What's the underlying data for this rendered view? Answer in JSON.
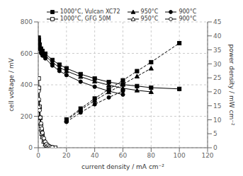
{
  "chart_data": {
    "type": "line",
    "xlabel": "current density / mA cm⁻²",
    "ylabel": "cell voltage / mV",
    "y2label": "power density / mW cm⁻²",
    "xlim": [
      0,
      120
    ],
    "ylim": [
      0,
      800
    ],
    "y2lim": [
      0,
      45
    ],
    "xticks": [
      0,
      20,
      40,
      60,
      80,
      100,
      120
    ],
    "yticks": [
      0,
      200,
      400,
      600,
      800
    ],
    "y2ticks": [
      0,
      5,
      10,
      15,
      20,
      25,
      30,
      35,
      40,
      45
    ],
    "grid": true,
    "legend": "top",
    "series": [
      {
        "name": "1000°C, Vulcan XC72",
        "axis": "y",
        "color": "black",
        "marker": "square",
        "line_style": "solid",
        "x": [
          0.3,
          0.5,
          1,
          2,
          3,
          5,
          10,
          15,
          20,
          30,
          40,
          50,
          60,
          70,
          80,
          100
        ],
        "values": [
          700,
          685,
          655,
          630,
          615,
          598,
          558,
          528,
          505,
          468,
          440,
          418,
          402,
          392,
          382,
          374
        ]
      },
      {
        "name": "950°C",
        "axis": "y",
        "color": "black",
        "marker": "triangle",
        "line_style": "solid",
        "x": [
          0.3,
          0.5,
          1,
          2,
          3,
          5,
          10,
          15,
          20,
          30,
          40,
          50,
          60,
          70,
          80
        ],
        "values": [
          690,
          675,
          642,
          618,
          602,
          585,
          543,
          510,
          488,
          452,
          422,
          398,
          378,
          365,
          355
        ]
      },
      {
        "name": "900°C",
        "axis": "y",
        "color": "black",
        "marker": "circle",
        "line_style": "solid",
        "x": [
          0.3,
          0.5,
          1,
          2,
          3,
          5,
          10,
          15,
          20,
          30,
          40,
          50,
          60
        ],
        "values": [
          672,
          660,
          628,
          602,
          586,
          568,
          523,
          488,
          462,
          420,
          388,
          360,
          338
        ]
      },
      {
        "name": "1000°C, GFG 50M",
        "axis": "y",
        "color": "black",
        "marker": "square-open",
        "line_style": "solid",
        "x": [
          0.3,
          0.5,
          1,
          1.5,
          2,
          2.5,
          3,
          4,
          5,
          6,
          7,
          8,
          10,
          12
        ],
        "values": [
          440,
          380,
          260,
          190,
          140,
          105,
          78,
          42,
          22,
          12,
          6,
          3,
          1,
          0
        ]
      },
      {
        "name": "950°C",
        "axis": "y",
        "color": "black",
        "marker": "triangle-open",
        "line_style": "solid",
        "x": [
          0.3,
          0.5,
          1,
          1.5,
          2,
          2.5,
          3,
          4,
          5,
          6,
          7,
          8,
          10
        ],
        "values": [
          305,
          260,
          195,
          155,
          118,
          90,
          68,
          40,
          23,
          13,
          7,
          3,
          1
        ]
      },
      {
        "name": "900°C",
        "axis": "y",
        "color": "black",
        "marker": "circle-open",
        "line_style": "solid",
        "x": [
          0.3,
          0.5,
          1,
          1.5,
          2,
          2.5,
          3,
          4,
          5,
          6,
          7,
          8,
          9,
          10
        ],
        "values": [
          360,
          308,
          238,
          192,
          155,
          122,
          95,
          60,
          38,
          24,
          15,
          9,
          5,
          3
        ]
      },
      {
        "axis": "y2",
        "color": "black",
        "marker": "square",
        "line_style": "dashed",
        "x": [
          20,
          30,
          40,
          50,
          60,
          70,
          80,
          100
        ],
        "values": [
          10.1,
          14.0,
          17.6,
          20.9,
          24.1,
          27.4,
          30.6,
          37.4
        ]
      },
      {
        "axis": "y2",
        "color": "black",
        "marker": "triangle",
        "line_style": "dashed",
        "x": [
          20,
          30,
          40,
          50,
          60,
          70,
          80
        ],
        "values": [
          9.76,
          13.56,
          16.88,
          19.9,
          22.68,
          25.55,
          28.4
        ]
      },
      {
        "axis": "y2",
        "color": "black",
        "marker": "circle",
        "line_style": "dashed",
        "x": [
          20,
          30,
          40,
          50,
          60
        ],
        "values": [
          9.24,
          12.6,
          15.52,
          18.0,
          20.28
        ]
      }
    ]
  }
}
